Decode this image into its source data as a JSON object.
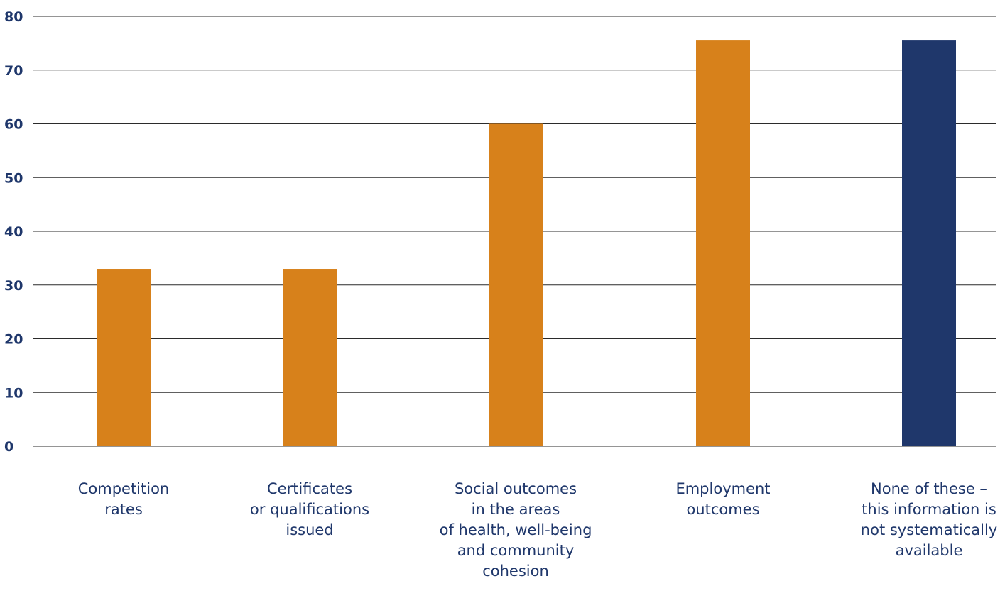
{
  "chart_data": {
    "type": "bar",
    "categories": [
      "Competition\nrates",
      "Certificates\nor qualifications\nissued",
      "Social outcomes\nin the areas\nof health, well-being\nand community\ncohesion",
      "Employment\noutcomes",
      "None of these –\nthis information is\nnot systematically\navailable"
    ],
    "values": [
      33,
      33,
      60,
      75.5,
      75.5
    ],
    "bar_colors": [
      "#d7811b",
      "#d7811b",
      "#d7811b",
      "#d7811b",
      "#1f376b"
    ],
    "ylim": [
      0,
      80
    ],
    "yticks": [
      "0",
      "10",
      "20",
      "30",
      "40",
      "50",
      "60",
      "70",
      "80"
    ],
    "title": "",
    "xlabel": "",
    "ylabel": "",
    "grid": true,
    "colors": {
      "text": "#1f376b",
      "grid": "#2b2b2b"
    }
  }
}
